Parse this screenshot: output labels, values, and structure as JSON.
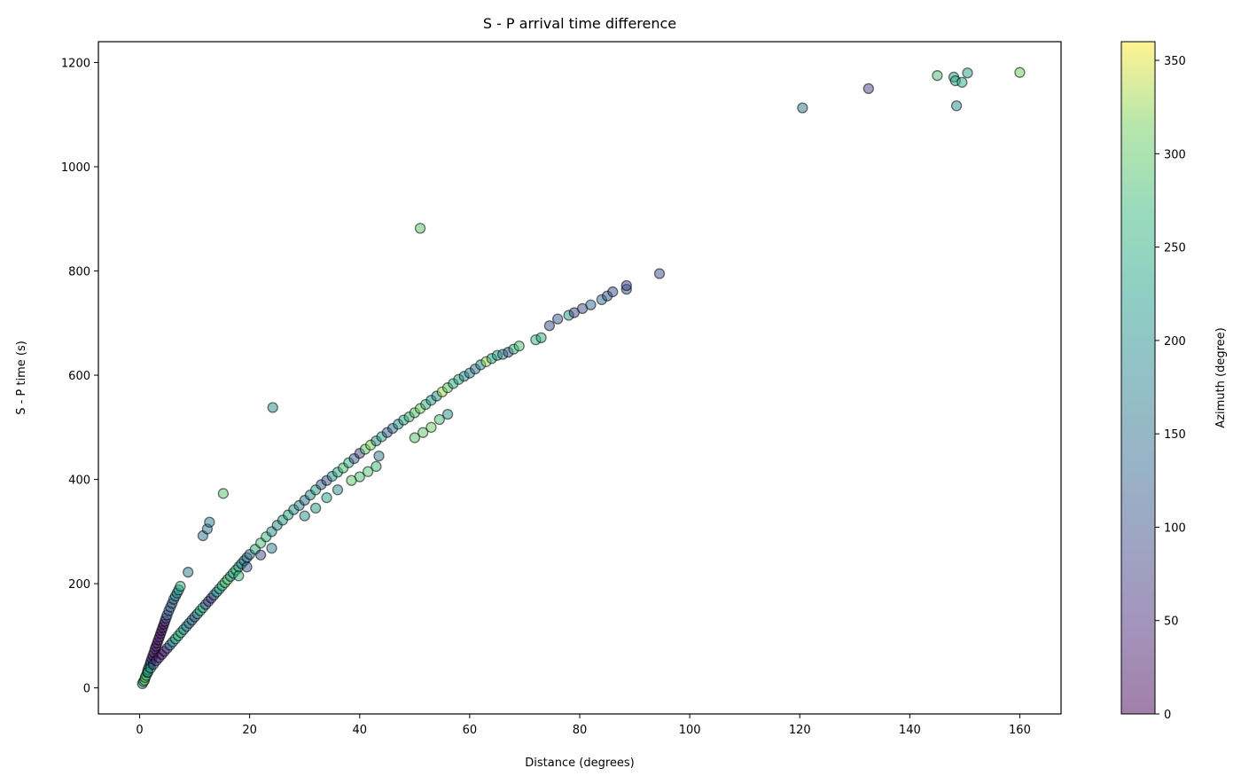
{
  "chart_data": {
    "type": "scatter",
    "title": "S - P arrival time difference",
    "xlabel": "Distance (degrees)",
    "ylabel": "S - P time (s)",
    "xlim": [
      -7.5,
      167.5
    ],
    "ylim": [
      -50,
      1240
    ],
    "xticks": [
      0,
      20,
      40,
      60,
      80,
      100,
      120,
      140,
      160
    ],
    "yticks": [
      0,
      200,
      400,
      600,
      800,
      1000,
      1200
    ],
    "grid": false,
    "marker": {
      "edgecolor": "#000000",
      "alpha": 0.5
    },
    "colorbar": {
      "label": "Azimuth (degree)",
      "colormap": "viridis",
      "range": [
        0,
        360
      ],
      "ticks": [
        0,
        50,
        100,
        150,
        200,
        250,
        300,
        350
      ]
    },
    "points": [
      {
        "x": 0.5,
        "y": 8,
        "az": 200
      },
      {
        "x": 0.7,
        "y": 12,
        "az": 280
      },
      {
        "x": 0.9,
        "y": 15,
        "az": 320
      },
      {
        "x": 1.0,
        "y": 20,
        "az": 300
      },
      {
        "x": 1.2,
        "y": 24,
        "az": 260
      },
      {
        "x": 1.4,
        "y": 30,
        "az": 240
      },
      {
        "x": 1.5,
        "y": 35,
        "az": 310
      },
      {
        "x": 1.7,
        "y": 40,
        "az": 270
      },
      {
        "x": 1.9,
        "y": 45,
        "az": 180
      },
      {
        "x": 2.0,
        "y": 50,
        "az": 60
      },
      {
        "x": 2.2,
        "y": 56,
        "az": 40
      },
      {
        "x": 2.4,
        "y": 62,
        "az": 20
      },
      {
        "x": 2.6,
        "y": 68,
        "az": 30
      },
      {
        "x": 2.8,
        "y": 75,
        "az": 50
      },
      {
        "x": 3.0,
        "y": 80,
        "az": 10
      },
      {
        "x": 3.2,
        "y": 86,
        "az": 25
      },
      {
        "x": 3.4,
        "y": 92,
        "az": 15
      },
      {
        "x": 3.6,
        "y": 98,
        "az": 35
      },
      {
        "x": 3.8,
        "y": 104,
        "az": 20
      },
      {
        "x": 4.0,
        "y": 110,
        "az": 10
      },
      {
        "x": 4.2,
        "y": 116,
        "az": 30
      },
      {
        "x": 4.4,
        "y": 122,
        "az": 15
      },
      {
        "x": 4.6,
        "y": 128,
        "az": 70
      },
      {
        "x": 4.8,
        "y": 134,
        "az": 90
      },
      {
        "x": 5.0,
        "y": 140,
        "az": 120
      },
      {
        "x": 5.3,
        "y": 148,
        "az": 100
      },
      {
        "x": 5.6,
        "y": 155,
        "az": 140
      },
      {
        "x": 5.9,
        "y": 162,
        "az": 110
      },
      {
        "x": 6.2,
        "y": 170,
        "az": 160
      },
      {
        "x": 6.5,
        "y": 176,
        "az": 180
      },
      {
        "x": 6.8,
        "y": 182,
        "az": 200
      },
      {
        "x": 7.1,
        "y": 188,
        "az": 230
      },
      {
        "x": 7.4,
        "y": 195,
        "az": 250
      },
      {
        "x": 1.5,
        "y": 30,
        "az": 200
      },
      {
        "x": 2.0,
        "y": 38,
        "az": 220
      },
      {
        "x": 2.5,
        "y": 45,
        "az": 90
      },
      {
        "x": 3.0,
        "y": 52,
        "az": 60
      },
      {
        "x": 3.5,
        "y": 58,
        "az": 40
      },
      {
        "x": 4.0,
        "y": 64,
        "az": 20
      },
      {
        "x": 4.5,
        "y": 70,
        "az": 30
      },
      {
        "x": 5.0,
        "y": 76,
        "az": 80
      },
      {
        "x": 5.5,
        "y": 82,
        "az": 120
      },
      {
        "x": 6.0,
        "y": 88,
        "az": 200
      },
      {
        "x": 6.5,
        "y": 94,
        "az": 230
      },
      {
        "x": 7.0,
        "y": 100,
        "az": 260
      },
      {
        "x": 7.5,
        "y": 106,
        "az": 240
      },
      {
        "x": 8.0,
        "y": 112,
        "az": 210
      },
      {
        "x": 8.5,
        "y": 118,
        "az": 180
      },
      {
        "x": 9.0,
        "y": 124,
        "az": 160
      },
      {
        "x": 9.5,
        "y": 130,
        "az": 140
      },
      {
        "x": 10.0,
        "y": 136,
        "az": 120
      },
      {
        "x": 10.5,
        "y": 142,
        "az": 200
      },
      {
        "x": 11.0,
        "y": 148,
        "az": 230
      },
      {
        "x": 11.5,
        "y": 154,
        "az": 260
      },
      {
        "x": 12.0,
        "y": 160,
        "az": 120
      },
      {
        "x": 12.5,
        "y": 166,
        "az": 90
      },
      {
        "x": 13.0,
        "y": 172,
        "az": 60
      },
      {
        "x": 13.5,
        "y": 178,
        "az": 150
      },
      {
        "x": 14.0,
        "y": 184,
        "az": 200
      },
      {
        "x": 14.5,
        "y": 190,
        "az": 230
      },
      {
        "x": 15.0,
        "y": 196,
        "az": 260
      },
      {
        "x": 15.5,
        "y": 202,
        "az": 280
      },
      {
        "x": 16.0,
        "y": 208,
        "az": 300
      },
      {
        "x": 16.5,
        "y": 214,
        "az": 240
      },
      {
        "x": 17.0,
        "y": 220,
        "az": 260
      },
      {
        "x": 17.5,
        "y": 226,
        "az": 280
      },
      {
        "x": 18.0,
        "y": 232,
        "az": 220
      },
      {
        "x": 18.5,
        "y": 238,
        "az": 200
      },
      {
        "x": 19.0,
        "y": 244,
        "az": 180
      },
      {
        "x": 19.5,
        "y": 250,
        "az": 160
      },
      {
        "x": 20.0,
        "y": 256,
        "az": 140
      },
      {
        "x": 21.0,
        "y": 266,
        "az": 250
      },
      {
        "x": 22.0,
        "y": 278,
        "az": 280
      },
      {
        "x": 23.0,
        "y": 290,
        "az": 270
      },
      {
        "x": 24.0,
        "y": 300,
        "az": 200
      },
      {
        "x": 25.0,
        "y": 312,
        "az": 180
      },
      {
        "x": 26.0,
        "y": 322,
        "az": 220
      },
      {
        "x": 27.0,
        "y": 332,
        "az": 240
      },
      {
        "x": 28.0,
        "y": 342,
        "az": 200
      },
      {
        "x": 29.0,
        "y": 350,
        "az": 180
      },
      {
        "x": 30.0,
        "y": 360,
        "az": 150
      },
      {
        "x": 31.0,
        "y": 370,
        "az": 200
      },
      {
        "x": 32.0,
        "y": 380,
        "az": 230
      },
      {
        "x": 33.0,
        "y": 390,
        "az": 120
      },
      {
        "x": 34.0,
        "y": 398,
        "az": 100
      },
      {
        "x": 35.0,
        "y": 406,
        "az": 200
      },
      {
        "x": 36.0,
        "y": 414,
        "az": 240
      },
      {
        "x": 37.0,
        "y": 422,
        "az": 280
      },
      {
        "x": 38.0,
        "y": 432,
        "az": 260
      },
      {
        "x": 39.0,
        "y": 440,
        "az": 120
      },
      {
        "x": 40.0,
        "y": 450,
        "az": 80
      },
      {
        "x": 41.0,
        "y": 458,
        "az": 300
      },
      {
        "x": 42.0,
        "y": 466,
        "az": 320
      },
      {
        "x": 43.0,
        "y": 474,
        "az": 200
      },
      {
        "x": 44.0,
        "y": 482,
        "az": 230
      },
      {
        "x": 45.0,
        "y": 490,
        "az": 120
      },
      {
        "x": 46.0,
        "y": 498,
        "az": 140
      },
      {
        "x": 47.0,
        "y": 506,
        "az": 200
      },
      {
        "x": 48.0,
        "y": 514,
        "az": 240
      },
      {
        "x": 49.0,
        "y": 520,
        "az": 270
      },
      {
        "x": 50.0,
        "y": 528,
        "az": 290
      },
      {
        "x": 51.0,
        "y": 536,
        "az": 310
      },
      {
        "x": 52.0,
        "y": 544,
        "az": 260
      },
      {
        "x": 53.0,
        "y": 552,
        "az": 220
      },
      {
        "x": 54.0,
        "y": 560,
        "az": 200
      },
      {
        "x": 55.0,
        "y": 568,
        "az": 330
      },
      {
        "x": 56.0,
        "y": 576,
        "az": 300
      },
      {
        "x": 57.0,
        "y": 584,
        "az": 240
      },
      {
        "x": 58.0,
        "y": 592,
        "az": 250
      },
      {
        "x": 59.0,
        "y": 598,
        "az": 200
      },
      {
        "x": 60.0,
        "y": 604,
        "az": 180
      },
      {
        "x": 61.0,
        "y": 612,
        "az": 160
      },
      {
        "x": 62.0,
        "y": 620,
        "az": 200
      },
      {
        "x": 63.0,
        "y": 626,
        "az": 330
      },
      {
        "x": 64.0,
        "y": 632,
        "az": 240
      },
      {
        "x": 65.0,
        "y": 638,
        "az": 220
      },
      {
        "x": 66.0,
        "y": 640,
        "az": 200
      },
      {
        "x": 67.0,
        "y": 644,
        "az": 100
      },
      {
        "x": 68.0,
        "y": 650,
        "az": 260
      },
      {
        "x": 69.0,
        "y": 656,
        "az": 280
      },
      {
        "x": 72.0,
        "y": 668,
        "az": 270
      },
      {
        "x": 73.0,
        "y": 672,
        "az": 250
      },
      {
        "x": 74.5,
        "y": 695,
        "az": 90
      },
      {
        "x": 76.0,
        "y": 708,
        "az": 110
      },
      {
        "x": 78.0,
        "y": 715,
        "az": 220
      },
      {
        "x": 79.0,
        "y": 720,
        "az": 80
      },
      {
        "x": 80.5,
        "y": 728,
        "az": 100
      },
      {
        "x": 82.0,
        "y": 735,
        "az": 130
      },
      {
        "x": 84.0,
        "y": 745,
        "az": 150
      },
      {
        "x": 85.0,
        "y": 752,
        "az": 120
      },
      {
        "x": 86.0,
        "y": 760,
        "az": 100
      },
      {
        "x": 88.5,
        "y": 765,
        "az": 110
      },
      {
        "x": 88.5,
        "y": 772,
        "az": 80
      },
      {
        "x": 94.5,
        "y": 795,
        "az": 90
      },
      {
        "x": 50.0,
        "y": 480,
        "az": 290
      },
      {
        "x": 51.5,
        "y": 490,
        "az": 300
      },
      {
        "x": 53.0,
        "y": 500,
        "az": 310
      },
      {
        "x": 54.5,
        "y": 515,
        "az": 280
      },
      {
        "x": 56.0,
        "y": 525,
        "az": 200
      },
      {
        "x": 40.0,
        "y": 405,
        "az": 280
      },
      {
        "x": 41.5,
        "y": 415,
        "az": 290
      },
      {
        "x": 43.0,
        "y": 425,
        "az": 270
      },
      {
        "x": 43.5,
        "y": 445,
        "az": 160
      },
      {
        "x": 38.5,
        "y": 398,
        "az": 300
      },
      {
        "x": 30.0,
        "y": 330,
        "az": 200
      },
      {
        "x": 32.0,
        "y": 345,
        "az": 220
      },
      {
        "x": 34.0,
        "y": 365,
        "az": 230
      },
      {
        "x": 36.0,
        "y": 380,
        "az": 200
      },
      {
        "x": 22.0,
        "y": 255,
        "az": 100
      },
      {
        "x": 24.0,
        "y": 268,
        "az": 180
      },
      {
        "x": 19.5,
        "y": 232,
        "az": 120
      },
      {
        "x": 18.0,
        "y": 215,
        "az": 260
      },
      {
        "x": 24.2,
        "y": 538,
        "az": 200
      },
      {
        "x": 51.0,
        "y": 882,
        "az": 290
      },
      {
        "x": 15.2,
        "y": 373,
        "az": 290
      },
      {
        "x": 11.5,
        "y": 292,
        "az": 150
      },
      {
        "x": 12.3,
        "y": 305,
        "az": 160
      },
      {
        "x": 12.7,
        "y": 318,
        "az": 170
      },
      {
        "x": 8.8,
        "y": 222,
        "az": 170
      },
      {
        "x": 120.5,
        "y": 1113,
        "az": 160
      },
      {
        "x": 132.5,
        "y": 1150,
        "az": 80
      },
      {
        "x": 145.0,
        "y": 1175,
        "az": 280
      },
      {
        "x": 148.0,
        "y": 1172,
        "az": 230
      },
      {
        "x": 148.3,
        "y": 1165,
        "az": 250
      },
      {
        "x": 149.5,
        "y": 1162,
        "az": 250
      },
      {
        "x": 150.5,
        "y": 1180,
        "az": 230
      },
      {
        "x": 148.5,
        "y": 1117,
        "az": 200
      },
      {
        "x": 160.0,
        "y": 1181,
        "az": 310
      }
    ]
  }
}
